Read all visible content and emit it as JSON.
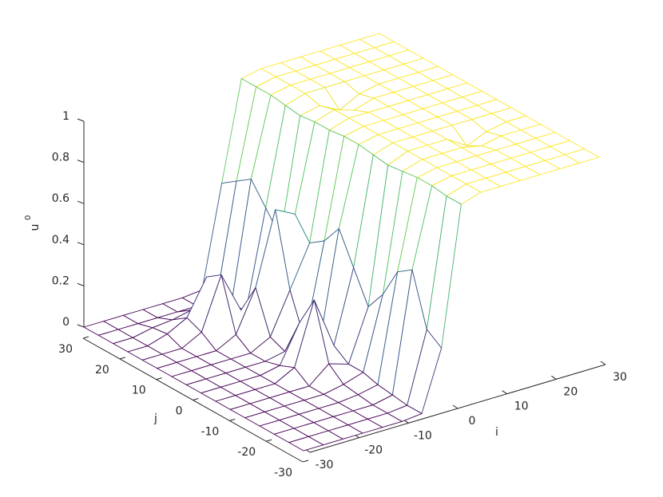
{
  "chart_data": {
    "type": "mesh",
    "xlabel": "i",
    "ylabel": "j",
    "zlabel": {
      "base": "u",
      "sup": "0"
    },
    "x": [
      -30,
      -26,
      -22,
      -18,
      -14,
      -10,
      -6,
      -2,
      2,
      6,
      10,
      14,
      18,
      22,
      26,
      30
    ],
    "y": [
      -30,
      -26,
      -22,
      -18,
      -14,
      -10,
      -6,
      -2,
      2,
      6,
      10,
      14,
      18,
      22,
      26,
      30
    ],
    "z": [
      [
        0,
        0,
        0,
        0,
        0,
        0,
        0.01,
        0.3,
        0.97,
        1,
        1,
        1,
        1,
        1,
        1,
        1
      ],
      [
        0,
        0,
        0,
        0,
        0,
        0,
        0.01,
        0.35,
        0.97,
        1,
        1,
        1,
        1,
        1,
        1,
        1
      ],
      [
        0,
        0,
        0,
        0,
        0,
        0,
        0.02,
        0.6,
        0.98,
        1,
        1,
        1,
        1,
        1,
        1,
        1
      ],
      [
        0,
        0,
        0,
        0,
        0,
        0.01,
        0.03,
        0.55,
        0.98,
        1,
        1,
        1,
        1,
        1,
        1,
        1
      ],
      [
        0,
        0,
        0,
        0,
        0,
        0.02,
        0.05,
        0.4,
        0.97,
        1,
        1,
        1,
        0.98,
        1,
        1,
        1
      ],
      [
        0,
        0,
        0,
        0,
        0,
        0.08,
        0.05,
        0.3,
        0.96,
        1,
        1,
        1,
        0.94,
        0.98,
        1,
        1
      ],
      [
        0,
        0,
        0,
        0,
        0.05,
        0.35,
        0.1,
        0.45,
        0.97,
        1,
        1,
        1,
        1,
        1,
        1,
        1
      ],
      [
        0,
        0,
        0,
        0,
        0.02,
        0.2,
        0.06,
        0.6,
        0.98,
        1,
        1,
        1,
        1,
        1,
        1,
        1
      ],
      [
        0,
        0,
        0,
        0,
        0,
        0.02,
        0.05,
        0.5,
        0.98,
        1,
        1,
        1,
        1,
        1,
        1,
        1
      ],
      [
        0,
        0,
        0,
        0,
        0,
        0.05,
        0.25,
        0.45,
        0.97,
        1,
        1,
        1,
        1,
        1,
        1,
        1
      ],
      [
        0,
        0,
        0,
        0,
        0.05,
        0.25,
        0.6,
        0.55,
        0.97,
        1,
        0.97,
        1,
        1,
        1,
        1,
        1
      ],
      [
        0,
        0,
        0,
        0.05,
        0.3,
        0.1,
        0.15,
        0.4,
        0.96,
        0.98,
        0.93,
        0.98,
        1,
        1,
        1,
        1
      ],
      [
        0,
        0,
        0.03,
        0.08,
        0.25,
        0.05,
        0.03,
        0.5,
        0.97,
        1,
        1,
        1,
        1,
        1,
        1,
        1
      ],
      [
        0,
        0,
        0.02,
        0.03,
        0.05,
        0.02,
        0.02,
        0.6,
        0.98,
        1,
        1,
        1,
        1,
        1,
        1,
        1
      ],
      [
        0,
        0,
        0,
        0,
        0,
        0,
        0.01,
        0.55,
        0.98,
        1,
        1,
        1,
        1,
        1,
        1,
        1
      ],
      [
        0,
        0,
        0,
        0,
        0,
        0,
        0.01,
        0.5,
        0.98,
        1,
        1,
        1,
        1,
        1,
        1,
        1
      ]
    ],
    "xlim": [
      -30,
      30
    ],
    "ylim": [
      -30,
      30
    ],
    "zlim": [
      0,
      1
    ],
    "xticks": [
      -30,
      -20,
      -10,
      0,
      10,
      20,
      30
    ],
    "yticks": [
      -30,
      -20,
      -10,
      0,
      10,
      20,
      30
    ],
    "zticks": [
      0,
      0.2,
      0.4,
      0.6,
      0.8,
      1
    ],
    "colormap": [
      "#440154",
      "#3b528b",
      "#21918c",
      "#5ec962",
      "#fde725"
    ]
  }
}
